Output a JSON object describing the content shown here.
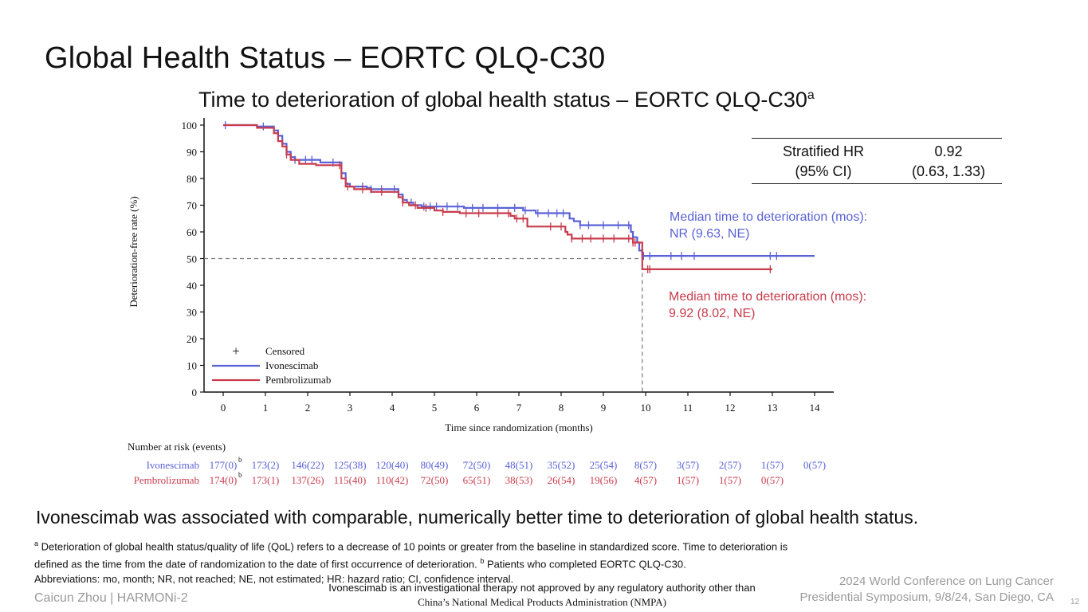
{
  "slide": {
    "title": "Global Health Status – EORTC QLQ-C30",
    "page_number": "12"
  },
  "colors": {
    "ivonescimab": "#5a62d6",
    "pembrolizumab": "#c83c4c"
  },
  "chart_data": {
    "type": "line",
    "subtype": "kaplan-meier",
    "title": "Time to deterioration of global health status – EORTC QLQ-C30",
    "title_superscript": "a",
    "xlabel": "Time since randomization (months)",
    "ylabel": "Deterioration-free rate (%)",
    "xlim": [
      0,
      14
    ],
    "ylim": [
      0,
      100
    ],
    "xticks": [
      0,
      1,
      2,
      3,
      4,
      5,
      6,
      7,
      8,
      9,
      10,
      11,
      12,
      13,
      14
    ],
    "yticks": [
      0,
      10,
      20,
      30,
      40,
      50,
      60,
      70,
      80,
      90,
      100
    ],
    "legend": [
      {
        "label": "Censored",
        "marker": "+"
      },
      {
        "label": "Ivonescimab",
        "color": "#5a62d6"
      },
      {
        "label": "Pembrolizumab",
        "color": "#c83c4c"
      }
    ],
    "median_reference": {
      "y": 50,
      "x": 9.92
    },
    "series": [
      {
        "name": "Ivonescimab",
        "color": "#5a62d6",
        "steps": [
          [
            0,
            100
          ],
          [
            0.8,
            99.5
          ],
          [
            1.2,
            98
          ],
          [
            1.3,
            96
          ],
          [
            1.4,
            93
          ],
          [
            1.5,
            90
          ],
          [
            1.6,
            88
          ],
          [
            1.7,
            87
          ],
          [
            2.2,
            87
          ],
          [
            2.3,
            86
          ],
          [
            2.75,
            86
          ],
          [
            2.8,
            82
          ],
          [
            2.9,
            78
          ],
          [
            3.0,
            77
          ],
          [
            3.4,
            76.5
          ],
          [
            3.5,
            76
          ],
          [
            4.1,
            76
          ],
          [
            4.15,
            74
          ],
          [
            4.25,
            72
          ],
          [
            4.35,
            71
          ],
          [
            4.5,
            70
          ],
          [
            4.7,
            69.5
          ],
          [
            5.7,
            69
          ],
          [
            7.0,
            69
          ],
          [
            7.1,
            68
          ],
          [
            7.4,
            67
          ],
          [
            8.1,
            67
          ],
          [
            8.2,
            65
          ],
          [
            8.3,
            64
          ],
          [
            8.45,
            62.5
          ],
          [
            9.6,
            62.5
          ],
          [
            9.65,
            60
          ],
          [
            9.7,
            58
          ],
          [
            9.8,
            56
          ],
          [
            9.85,
            53
          ],
          [
            9.92,
            51
          ],
          [
            14.0,
            51
          ]
        ],
        "censored_x": [
          0.05,
          0.95,
          1.7,
          1.95,
          2.1,
          2.6,
          2.8,
          3.3,
          3.5,
          3.75,
          4.05,
          4.45,
          4.75,
          4.9,
          5.05,
          5.3,
          5.55,
          5.9,
          6.15,
          6.5,
          6.9,
          7.15,
          7.45,
          7.7,
          7.9,
          8.05,
          8.45,
          8.65,
          9.0,
          9.35,
          9.6,
          9.95,
          10.1,
          10.6,
          10.85,
          11.15,
          12.95,
          13.1
        ]
      },
      {
        "name": "Pembrolizumab",
        "color": "#c83c4c",
        "steps": [
          [
            0,
            100
          ],
          [
            0.8,
            99
          ],
          [
            1.2,
            97
          ],
          [
            1.3,
            94
          ],
          [
            1.4,
            92
          ],
          [
            1.5,
            89
          ],
          [
            1.6,
            87
          ],
          [
            1.8,
            85.5
          ],
          [
            2.2,
            85
          ],
          [
            2.7,
            85
          ],
          [
            2.8,
            80
          ],
          [
            2.9,
            77
          ],
          [
            3.1,
            76
          ],
          [
            3.5,
            75
          ],
          [
            4.1,
            75
          ],
          [
            4.15,
            73
          ],
          [
            4.25,
            71
          ],
          [
            4.4,
            70
          ],
          [
            4.6,
            69
          ],
          [
            5.0,
            68
          ],
          [
            5.2,
            67.5
          ],
          [
            5.6,
            67
          ],
          [
            6.7,
            67
          ],
          [
            6.8,
            66
          ],
          [
            6.9,
            65
          ],
          [
            7.2,
            62
          ],
          [
            8.0,
            62
          ],
          [
            8.1,
            60
          ],
          [
            8.15,
            59
          ],
          [
            8.25,
            57.5
          ],
          [
            9.6,
            57.5
          ],
          [
            9.7,
            56
          ],
          [
            9.75,
            56
          ],
          [
            9.92,
            46
          ],
          [
            13.0,
            46
          ]
        ],
        "censored_x": [
          1.5,
          2.75,
          2.95,
          3.3,
          3.75,
          4.25,
          4.55,
          4.8,
          5.2,
          5.75,
          6.05,
          6.5,
          6.75,
          6.95,
          7.1,
          7.75,
          8.0,
          8.25,
          8.5,
          8.7,
          9.0,
          9.25,
          9.6,
          9.7,
          9.75,
          10.05,
          10.1,
          12.95
        ]
      }
    ]
  },
  "hr_table": {
    "label_line1": "Stratified HR",
    "label_line2": "(95% CI)",
    "value_line1": "0.92",
    "value_line2": "(0.63, 1.33)"
  },
  "medians": {
    "ivonescimab_line1": "Median time to deterioration (mos):",
    "ivonescimab_line2": "NR (9.63, NE)",
    "pembrolizumab_line1": "Median time to deterioration (mos):",
    "pembrolizumab_line2": "9.92 (8.02, NE)"
  },
  "risk_table": {
    "header": "Number at risk (events)",
    "footnote_marker": "b",
    "rows": [
      {
        "name": "Ivonescimab",
        "values": [
          "177(0)",
          "173(2)",
          "146(22)",
          "125(38)",
          "120(40)",
          "80(49)",
          "72(50)",
          "48(51)",
          "35(52)",
          "25(54)",
          "8(57)",
          "3(57)",
          "2(57)",
          "1(57)",
          "0(57)"
        ]
      },
      {
        "name": "Pembrolizumab",
        "values": [
          "174(0)",
          "173(1)",
          "137(26)",
          "115(40)",
          "110(42)",
          "72(50)",
          "65(51)",
          "38(53)",
          "26(54)",
          "19(56)",
          "4(57)",
          "1(57)",
          "1(57)",
          "0(57)"
        ]
      }
    ]
  },
  "conclusion": "Ivonescimab was associated with comparable, numerically better time to deterioration of global health status.",
  "footnotes": {
    "a_marker": "a",
    "a_text_1": " Deterioration of global health status/quality of life (QoL) refers to a decrease of 10 points or greater from the baseline in standardized score. Time to deterioration is",
    "a_text_2": "defined as the time from the date of randomization to the date of first occurrence of deterioration. ",
    "b_marker": "b",
    "b_text": " Patients who completed EORTC QLQ-C30.",
    "abbreviations": "Abbreviations: mo, month; NR, not reached; NE, not estimated; HR: hazard ratio; CI, confidence interval."
  },
  "disclaimer": {
    "line1": "Ivonescimab is an investigational therapy not approved by any regulatory authority other than",
    "line2": "China’s National Medical Products Administration (NMPA)"
  },
  "footer": {
    "left": "Caicun Zhou | HARMONi-2",
    "right_line1": "2024 World Conference on Lung Cancer",
    "right_line2": "Presidential Symposium, 9/8/24, San Diego, CA"
  }
}
